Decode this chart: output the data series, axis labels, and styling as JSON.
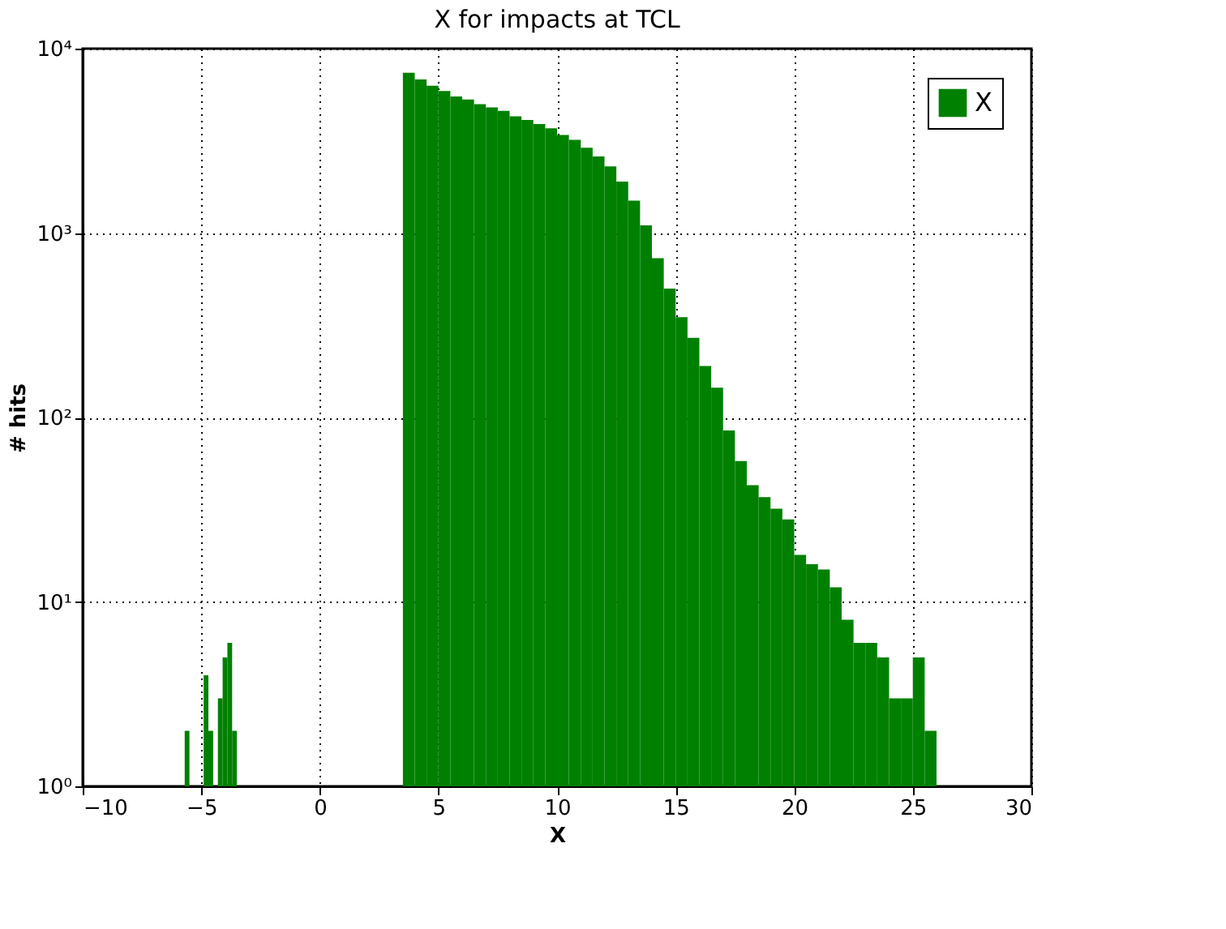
{
  "chart_data": {
    "type": "histogram",
    "title": "X for impacts at TCL",
    "xlabel": "X",
    "ylabel": "# hits",
    "bins": [
      -5.7,
      -5.5,
      -4.9,
      -4.7,
      -4.5,
      -4.3,
      -4.1,
      -3.9,
      -3.7,
      -3.5,
      3.5,
      4.0,
      4.5,
      5.0,
      5.5,
      6.0,
      6.5,
      7.0,
      7.5,
      8.0,
      8.5,
      9.0,
      9.5,
      10.0,
      10.5,
      11.0,
      11.5,
      12.0,
      12.5,
      13.0,
      13.5,
      14.0,
      14.5,
      15.0,
      15.5,
      16.0,
      16.5,
      17.0,
      17.5,
      18.0,
      18.5,
      19.0,
      19.5,
      20.0,
      20.5,
      21.0,
      21.5,
      22.0,
      22.5,
      23.0,
      23.5,
      24.0,
      24.5,
      25.0,
      25.5,
      26.0
    ],
    "series": [
      {
        "name": "X",
        "color": "#008000",
        "values": [
          2,
          null,
          4,
          2,
          null,
          3,
          5,
          6,
          2,
          null,
          7400,
          6800,
          6300,
          5900,
          5500,
          5300,
          5000,
          4800,
          4600,
          4300,
          4100,
          3900,
          3700,
          3400,
          3200,
          2900,
          2600,
          2300,
          1900,
          1500,
          1100,
          730,
          500,
          350,
          270,
          190,
          145,
          85,
          58,
          43,
          37,
          32,
          28,
          18,
          16,
          15,
          12,
          8,
          6,
          6,
          5,
          3,
          3,
          5,
          2
        ]
      }
    ],
    "log": "y",
    "xlim": [
      -10,
      30
    ],
    "xticks": [
      -10,
      -5,
      0,
      5,
      10,
      15,
      20,
      25,
      30
    ],
    "ylim": [
      1,
      10000
    ],
    "yticks": [
      {
        "value": 1,
        "label": "10⁰"
      },
      {
        "value": 10,
        "label": "10¹"
      },
      {
        "value": 100,
        "label": "10²"
      },
      {
        "value": 1000,
        "label": "10³"
      },
      {
        "value": 10000,
        "label": "10⁴"
      }
    ],
    "grid": true,
    "legend": "top right"
  }
}
